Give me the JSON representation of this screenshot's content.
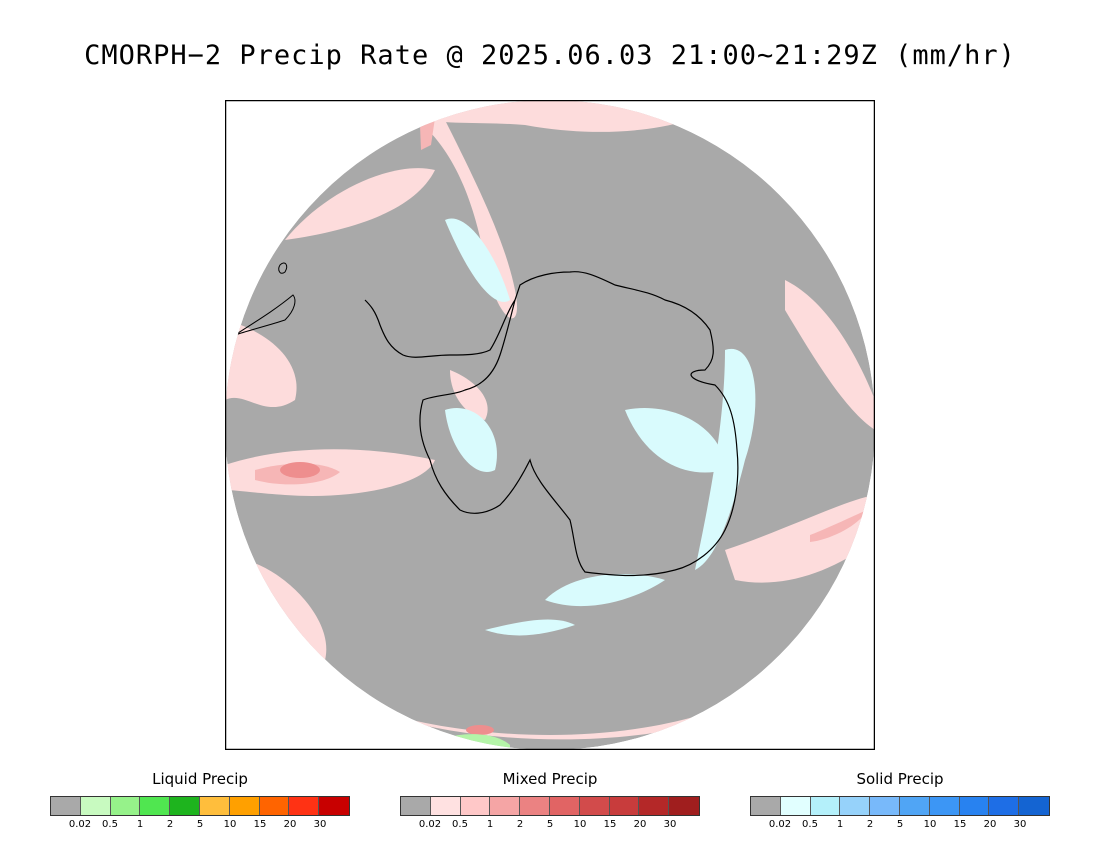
{
  "title": "CMORPH−2 Precip Rate @ 2025.06.03 21:00~21:29Z (mm/hr)",
  "map": {
    "projection": "south-polar-stereographic",
    "colors": {
      "no_precip": "#a9a9a9",
      "mixed_light": "#fddcdc",
      "mixed_moderate": "#f6b6b6",
      "mixed_heavy": "#ee8e8e",
      "solid_light": "#d9fbfd",
      "liquid_light": "#b4f4a8",
      "coastline": "#000000",
      "frame": "#000000"
    }
  },
  "legends": [
    {
      "title": "Liquid Precip",
      "colors": [
        "#a9a9a9",
        "#c8fac0",
        "#96f28a",
        "#50e650",
        "#1eb41e",
        "#ffbe3c",
        "#ffa000",
        "#ff6400",
        "#ff3214",
        "#c80000"
      ],
      "ticks": [
        "0.02",
        "0.5",
        "1",
        "2",
        "5",
        "10",
        "15",
        "20",
        "30"
      ]
    },
    {
      "title": "Mixed Precip",
      "colors": [
        "#a9a9a9",
        "#ffe1e1",
        "#ffc8c8",
        "#f5a5a5",
        "#eb8282",
        "#e16464",
        "#d24b4b",
        "#c83c3c",
        "#b42828",
        "#a01e1e"
      ],
      "ticks": [
        "0.02",
        "0.5",
        "1",
        "2",
        "5",
        "10",
        "15",
        "20",
        "30"
      ]
    },
    {
      "title": "Solid Precip",
      "colors": [
        "#a9a9a9",
        "#e1ffff",
        "#b4f0fa",
        "#96d2fa",
        "#78b9fa",
        "#50a5f5",
        "#3c96f5",
        "#2882f0",
        "#1e6ee6",
        "#1464d2"
      ],
      "ticks": [
        "0.02",
        "0.5",
        "1",
        "2",
        "5",
        "10",
        "15",
        "20",
        "30"
      ]
    }
  ]
}
